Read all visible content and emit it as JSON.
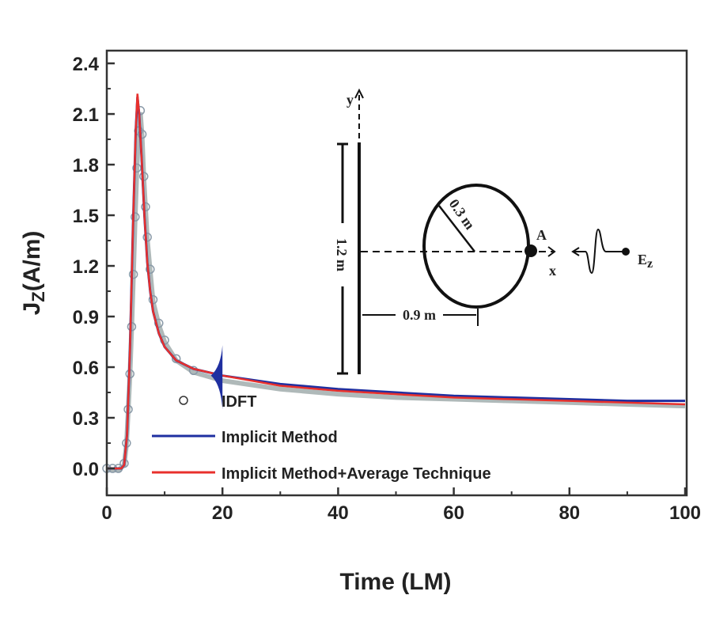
{
  "chart_data": {
    "type": "line",
    "title": "",
    "xlabel": "Time (LM)",
    "ylabel": "J_Z(A/m)",
    "ylabel_main": "J",
    "ylabel_sub": "Z",
    "ylabel_unit": "(A/m)",
    "xlim": [
      0,
      100
    ],
    "ylim": [
      -0.15,
      2.4
    ],
    "xticks": [
      "0",
      "20",
      "40",
      "60",
      "80",
      "100"
    ],
    "yticks": [
      "0.0",
      "0.3",
      "0.6",
      "0.9",
      "1.2",
      "1.5",
      "1.8",
      "2.1",
      "2.4"
    ],
    "grid": false,
    "legend_position": "bottom-left",
    "series": [
      {
        "name": "IDFT",
        "style": "circle-markers",
        "color": "#8a9aa8",
        "x": [
          0,
          1,
          2,
          3,
          3.4,
          3.7,
          4,
          4.3,
          4.6,
          4.9,
          5.2,
          5.5,
          5.8,
          6.1,
          6.4,
          6.7,
          7,
          7.5,
          8,
          9,
          10,
          12,
          15,
          20,
          30,
          40,
          50,
          60,
          70,
          80,
          90,
          100
        ],
        "y": [
          0,
          0,
          0,
          0.03,
          0.15,
          0.35,
          0.56,
          0.84,
          1.15,
          1.49,
          1.78,
          2.0,
          2.12,
          1.98,
          1.73,
          1.55,
          1.37,
          1.18,
          1.0,
          0.86,
          0.76,
          0.65,
          0.58,
          0.53,
          0.48,
          0.45,
          0.43,
          0.42,
          0.41,
          0.4,
          0.39,
          0.38
        ]
      },
      {
        "name": "Implicit Method",
        "style": "line",
        "color": "#1f2fa0",
        "x": [
          0,
          2.5,
          3,
          3.5,
          4,
          4.5,
          5,
          5.3,
          5.6,
          6,
          6.5,
          7,
          7.5,
          8,
          9,
          10,
          12,
          15,
          20,
          30,
          40,
          50,
          60,
          70,
          80,
          90,
          100
        ],
        "y": [
          0,
          0,
          0.02,
          0.2,
          0.7,
          1.4,
          2.0,
          2.2,
          2.1,
          1.85,
          1.5,
          1.22,
          1.05,
          0.93,
          0.8,
          0.72,
          0.64,
          0.59,
          0.55,
          0.5,
          0.47,
          0.45,
          0.43,
          0.42,
          0.41,
          0.4,
          0.4
        ]
      },
      {
        "name": "Implicit Method+Average Technique",
        "style": "line",
        "color": "#e8302c",
        "x": [
          0,
          2.5,
          3,
          3.5,
          4,
          4.5,
          5,
          5.3,
          5.6,
          6,
          6.5,
          7,
          7.5,
          8,
          9,
          10,
          12,
          15,
          20,
          30,
          40,
          50,
          60,
          70,
          80,
          90,
          100
        ],
        "y": [
          0,
          0,
          0.02,
          0.2,
          0.7,
          1.4,
          2.0,
          2.22,
          2.1,
          1.85,
          1.5,
          1.22,
          1.05,
          0.93,
          0.8,
          0.72,
          0.64,
          0.59,
          0.55,
          0.49,
          0.46,
          0.44,
          0.42,
          0.41,
          0.4,
          0.39,
          0.38
        ]
      }
    ],
    "annotations": {
      "oscillation_note_at_x": 20,
      "inset": {
        "y_axis": "y",
        "x_axis": "x",
        "height": "1.2 m",
        "radius": "0.3 m",
        "distance": "0.9 m",
        "point": "A",
        "source": "E",
        "source_sub": "z"
      }
    }
  }
}
